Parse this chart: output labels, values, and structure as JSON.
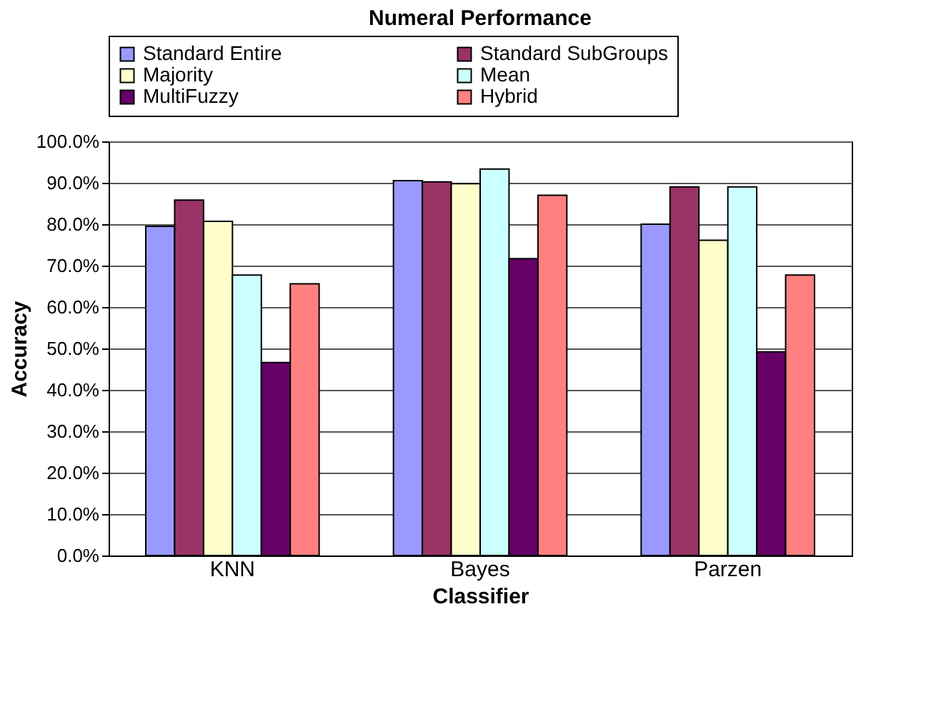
{
  "chart_data": {
    "type": "bar",
    "title": "Numeral Performance",
    "xlabel": "Classifier",
    "ylabel": "Accuracy",
    "categories": [
      "KNN",
      "Bayes",
      "Parzen"
    ],
    "series": [
      {
        "name": "Standard Entire",
        "color": "#9999ff",
        "values": [
          79.5,
          90.5,
          80.0
        ]
      },
      {
        "name": "Standard SubGroups",
        "color": "#993366",
        "values": [
          85.8,
          90.2,
          89.0
        ]
      },
      {
        "name": "Majority",
        "color": "#ffffcc",
        "values": [
          80.7,
          89.8,
          76.1
        ]
      },
      {
        "name": "Mean",
        "color": "#ccffff",
        "values": [
          67.7,
          93.3,
          89.0
        ]
      },
      {
        "name": "MultiFuzzy",
        "color": "#660066",
        "values": [
          46.6,
          71.7,
          49.2
        ]
      },
      {
        "name": "Hybrid",
        "color": "#ff8080",
        "values": [
          65.6,
          87.0,
          67.7
        ]
      }
    ],
    "ylim": [
      0,
      100
    ],
    "yticks": [
      {
        "value": 0,
        "label": "0.0%"
      },
      {
        "value": 10,
        "label": "10.0%"
      },
      {
        "value": 20,
        "label": "20.0%"
      },
      {
        "value": 30,
        "label": "30.0%"
      },
      {
        "value": 40,
        "label": "40.0%"
      },
      {
        "value": 50,
        "label": "50.0%"
      },
      {
        "value": 60,
        "label": "60.0%"
      },
      {
        "value": 70,
        "label": "70.0%"
      },
      {
        "value": 80,
        "label": "80.0%"
      },
      {
        "value": 90,
        "label": "90.0%"
      },
      {
        "value": 100,
        "label": "100.0%"
      }
    ],
    "grid": "y",
    "legend": "top"
  }
}
